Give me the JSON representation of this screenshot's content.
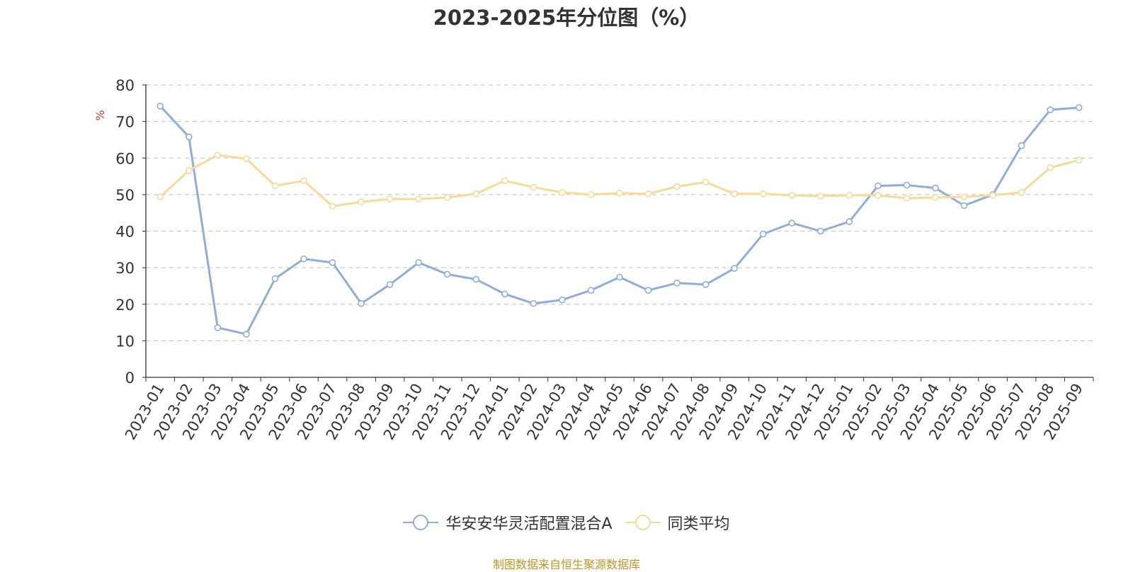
{
  "chart_data": {
    "type": "line",
    "title": "2023-2025年分位图（%）",
    "ylabel": "%",
    "ylim": [
      0,
      80
    ],
    "yticks": [
      0,
      10,
      20,
      30,
      40,
      50,
      60,
      70,
      80
    ],
    "grid": true,
    "legend_position": "bottom",
    "categories": [
      "2023-01",
      "2023-02",
      "2023-03",
      "2023-04",
      "2023-05",
      "2023-06",
      "2023-07",
      "2023-08",
      "2023-09",
      "2023-10",
      "2023-11",
      "2023-12",
      "2024-01",
      "2024-02",
      "2024-03",
      "2024-04",
      "2024-05",
      "2024-06",
      "2024-07",
      "2024-08",
      "2024-09",
      "2024-10",
      "2024-11",
      "2024-12",
      "2025-01",
      "2025-02",
      "2025-03",
      "2025-04",
      "2025-05",
      "2025-06",
      "2025-07",
      "2025-08",
      "2025-09"
    ],
    "series": [
      {
        "name": "华安安华灵活配置混合A",
        "color": "#8eaed8",
        "values": [
          74.2,
          65.8,
          13.6,
          11.8,
          27.0,
          32.4,
          31.4,
          20.2,
          25.4,
          31.4,
          28.2,
          26.8,
          22.8,
          20.2,
          21.2,
          23.8,
          27.4,
          23.8,
          25.8,
          25.4,
          29.8,
          39.2,
          42.2,
          40.0,
          42.6,
          52.4,
          52.6,
          51.8,
          47.0,
          50.0,
          63.4,
          73.2,
          73.8
        ]
      },
      {
        "name": "同类平均",
        "color": "#f9d99a",
        "values": [
          49.4,
          56.6,
          60.8,
          59.8,
          52.4,
          53.8,
          46.8,
          48.0,
          48.8,
          48.8,
          49.2,
          50.2,
          53.8,
          52.0,
          50.6,
          50.0,
          50.4,
          50.2,
          52.2,
          53.4,
          50.2,
          50.2,
          49.8,
          49.6,
          49.8,
          49.8,
          49.0,
          49.2,
          49.4,
          49.8,
          50.6,
          57.4,
          59.4
        ]
      }
    ]
  },
  "footer": {
    "source": "制图数据来自恒生聚源数据库"
  }
}
